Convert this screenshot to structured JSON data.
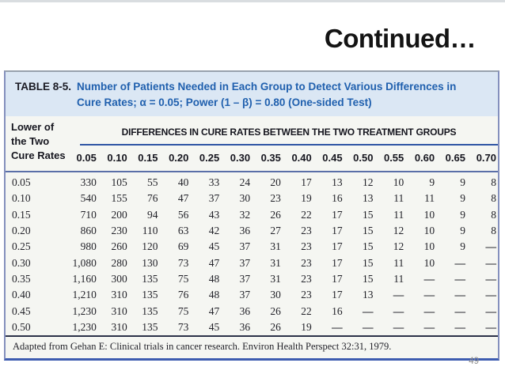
{
  "slide": {
    "title": "Continued…",
    "page_number": "49"
  },
  "table": {
    "label": "TABLE 8-5.",
    "title_lines": [
      "Number of Patients Needed in Each Group to Detect Various Differences in",
      "Cure Rates; α = 0.05; Power (1 – β) = 0.80 (One-sided Test)"
    ],
    "row_header_lines": [
      "Lower of",
      "the Two",
      "Cure Rates"
    ],
    "span_header": "DIFFERENCES IN CURE RATES BETWEEN THE TWO TREATMENT GROUPS",
    "columns": [
      "0.05",
      "0.10",
      "0.15",
      "0.20",
      "0.25",
      "0.30",
      "0.35",
      "0.40",
      "0.45",
      "0.50",
      "0.55",
      "0.60",
      "0.65",
      "0.70"
    ],
    "rows": [
      {
        "rate": "0.05",
        "values": [
          "330",
          "105",
          "55",
          "40",
          "33",
          "24",
          "20",
          "17",
          "13",
          "12",
          "10",
          "9",
          "9",
          "8"
        ]
      },
      {
        "rate": "0.10",
        "values": [
          "540",
          "155",
          "76",
          "47",
          "37",
          "30",
          "23",
          "19",
          "16",
          "13",
          "11",
          "11",
          "9",
          "8"
        ]
      },
      {
        "rate": "0.15",
        "values": [
          "710",
          "200",
          "94",
          "56",
          "43",
          "32",
          "26",
          "22",
          "17",
          "15",
          "11",
          "10",
          "9",
          "8"
        ]
      },
      {
        "rate": "0.20",
        "values": [
          "860",
          "230",
          "110",
          "63",
          "42",
          "36",
          "27",
          "23",
          "17",
          "15",
          "12",
          "10",
          "9",
          "8"
        ]
      },
      {
        "rate": "0.25",
        "values": [
          "980",
          "260",
          "120",
          "69",
          "45",
          "37",
          "31",
          "23",
          "17",
          "15",
          "12",
          "10",
          "9",
          "—"
        ]
      },
      {
        "rate": "0.30",
        "values": [
          "1,080",
          "280",
          "130",
          "73",
          "47",
          "37",
          "31",
          "23",
          "17",
          "15",
          "11",
          "10",
          "—",
          "—"
        ]
      },
      {
        "rate": "0.35",
        "values": [
          "1,160",
          "300",
          "135",
          "75",
          "48",
          "37",
          "31",
          "23",
          "17",
          "15",
          "11",
          "—",
          "—",
          "—"
        ]
      },
      {
        "rate": "0.40",
        "values": [
          "1,210",
          "310",
          "135",
          "76",
          "48",
          "37",
          "30",
          "23",
          "17",
          "13",
          "—",
          "—",
          "—",
          "—"
        ]
      },
      {
        "rate": "0.45",
        "values": [
          "1,230",
          "310",
          "135",
          "75",
          "47",
          "36",
          "26",
          "22",
          "16",
          "—",
          "—",
          "—",
          "—",
          "—"
        ]
      },
      {
        "rate": "0.50",
        "values": [
          "1,230",
          "310",
          "135",
          "73",
          "45",
          "36",
          "26",
          "19",
          "—",
          "—",
          "—",
          "—",
          "—",
          "—"
        ]
      }
    ],
    "footnote": "Adapted from Gehan E: Clinical trials in cancer research. Environ Health Perspect 32:31, 1979.",
    "colors": {
      "title_band_bg": "#dbe7f4",
      "title_text_blue": "#2060ae",
      "rule_blue": "#2f55a4",
      "bottom_border_blue": "#3e5cb0"
    }
  }
}
